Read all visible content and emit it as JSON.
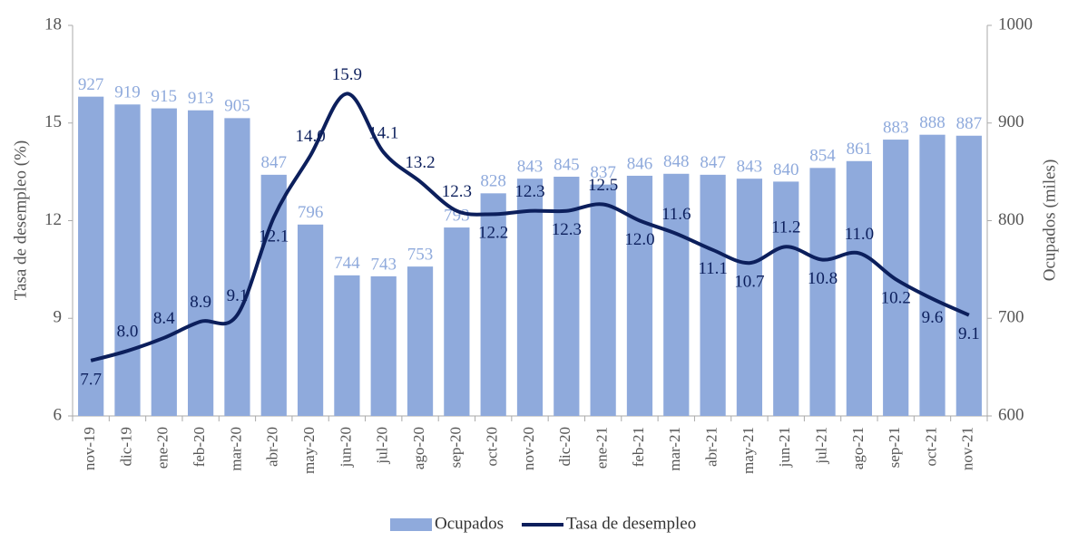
{
  "chart_data": {
    "type": "bar-line",
    "categories": [
      "nov-19",
      "dic-19",
      "ene-20",
      "feb-20",
      "mar-20",
      "abr-20",
      "may-20",
      "jun-20",
      "jul-20",
      "ago-20",
      "sep-20",
      "oct-20",
      "nov-20",
      "dic-20",
      "ene-21",
      "feb-21",
      "mar-21",
      "abr-21",
      "may-21",
      "jun-21",
      "jul-21",
      "ago-21",
      "sep-21",
      "oct-21",
      "nov-21"
    ],
    "series": [
      {
        "name": "Ocupados",
        "type": "bar",
        "axis": "y2",
        "color": "#8faadc",
        "label_color": "#8faadc",
        "values": [
          927,
          919,
          915,
          913,
          905,
          847,
          796,
          744,
          743,
          753,
          793,
          828,
          843,
          845,
          837,
          846,
          848,
          847,
          843,
          840,
          854,
          861,
          883,
          888,
          887
        ]
      },
      {
        "name": "Tasa de desempleo",
        "type": "line",
        "axis": "y",
        "color": "#0c1f5c",
        "label_color": "#0c1f5c",
        "values": [
          7.7,
          8.0,
          8.4,
          8.9,
          9.1,
          12.1,
          14.0,
          15.9,
          14.1,
          13.2,
          12.3,
          12.2,
          12.3,
          12.3,
          12.5,
          12.0,
          11.6,
          11.1,
          10.7,
          11.2,
          10.8,
          11.0,
          10.2,
          9.6,
          9.1
        ],
        "value_labels": [
          "7.7",
          "8.0",
          "8.4",
          "8.9",
          "9.1",
          "12.1",
          "14.0",
          "15.9",
          "14.1",
          "13.2",
          "12.3",
          "12.2",
          "12.3",
          "12.3",
          "12.5",
          "12.0",
          "11.6",
          "11.1",
          "10.7",
          "11.2",
          "10.8",
          "11.0",
          "10.2",
          "9.6",
          "9.1"
        ]
      }
    ],
    "ylabel": "Tasa de desempleo (%)",
    "y2label": "Ocupados (miles)",
    "ylim": [
      6,
      18
    ],
    "yticks": [
      6,
      9,
      12,
      15,
      18
    ],
    "y2lim": [
      600,
      1000
    ],
    "y2ticks": [
      600,
      700,
      800,
      900,
      1000
    ],
    "legend": "bottom"
  }
}
